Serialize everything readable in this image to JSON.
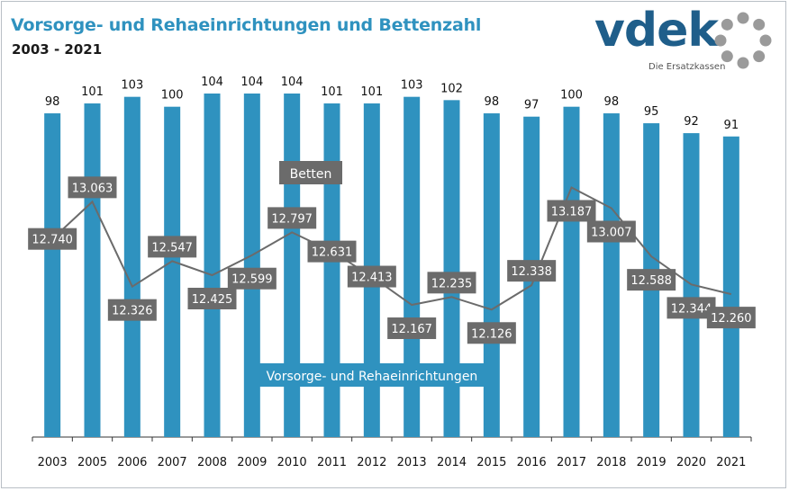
{
  "header": {
    "title": "Vorsorge- und Rehaeinrichtungen und Bettenzahl",
    "subtitle": "2003 - 2021"
  },
  "logo": {
    "text": "vdek",
    "tagline": "Die Ersatzkassen",
    "color": "#1f5e8a"
  },
  "colors": {
    "bar": "#2f92bf",
    "line": "#6b6b6b",
    "label_box": "#6b6b6b",
    "title": "#2f92bf"
  },
  "chart_data": {
    "type": "bar",
    "categories": [
      "2003",
      "2005",
      "2006",
      "2007",
      "2008",
      "2009",
      "2010",
      "2011",
      "2012",
      "2013",
      "2014",
      "2015",
      "2016",
      "2017",
      "2018",
      "2019",
      "2020",
      "2021"
    ],
    "series": [
      {
        "name": "Vorsorge- und Rehaeinrichtungen",
        "type": "bar",
        "values": [
          98,
          101,
          103,
          100,
          104,
          104,
          104,
          101,
          101,
          103,
          102,
          98,
          97,
          100,
          98,
          95,
          92,
          91
        ],
        "labels": [
          "98",
          "101",
          "103",
          "100",
          "104",
          "104",
          "104",
          "101",
          "101",
          "103",
          "102",
          "98",
          "97",
          "100",
          "98",
          "95",
          "92",
          "91"
        ]
      },
      {
        "name": "Betten",
        "type": "line",
        "values": [
          12740,
          13063,
          12326,
          12547,
          12425,
          12599,
          12797,
          12631,
          12413,
          12167,
          12235,
          12126,
          12338,
          13187,
          13007,
          12588,
          12344,
          12260
        ],
        "labels": [
          "12.740",
          "13.063",
          "12.326",
          "12.547",
          "12.425",
          "12.599",
          "12.797",
          "12.631",
          "12.413",
          "12.167",
          "12.235",
          "12.126",
          "12.338",
          "13.187",
          "13.007",
          "12.588",
          "12.344",
          "12.260"
        ]
      }
    ],
    "bar_ylim": [
      0,
      104
    ],
    "line_ylim": [
      11300,
      13800
    ],
    "legend": [
      "Betten",
      "Vorsorge- und Rehaeinrichtungen"
    ],
    "grid": false
  }
}
